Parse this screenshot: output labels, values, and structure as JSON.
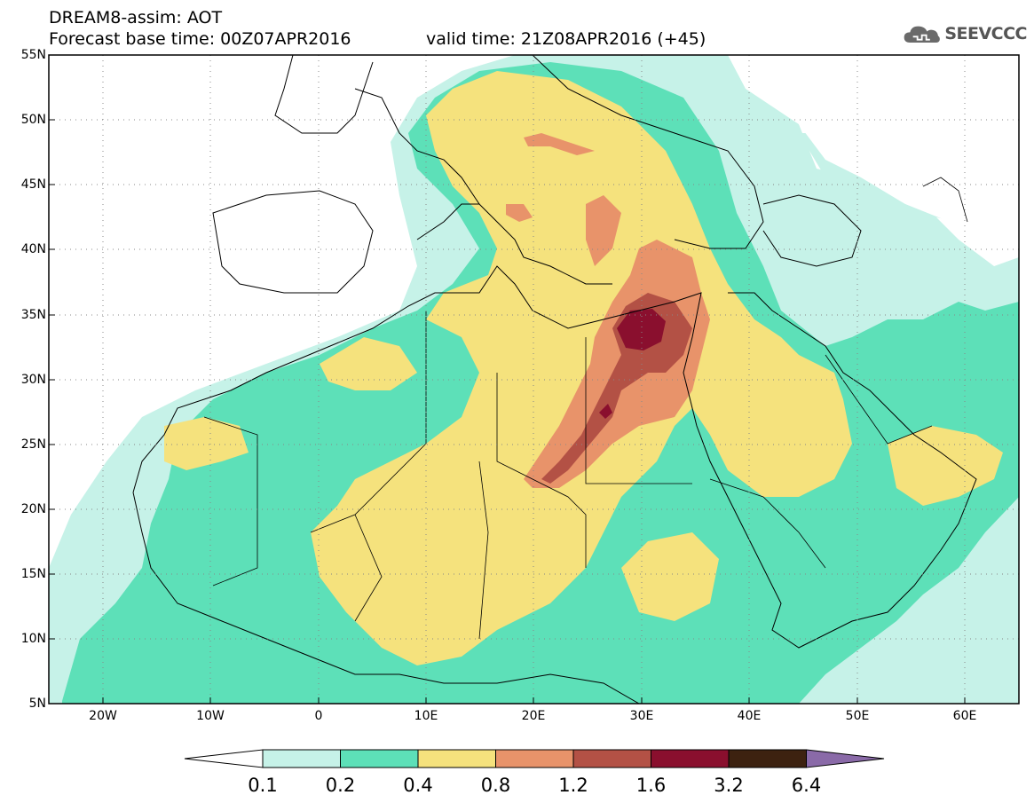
{
  "header": {
    "line1": "DREAM8-assim: AOT",
    "line2": "Forecast base time: 00Z07APR2016",
    "valid": "valid time: 21Z08APR2016 (+45)"
  },
  "logo": {
    "icon": "cloud-icon",
    "text": "SEEVCCC"
  },
  "axes": {
    "lat_labels": [
      "55N",
      "50N",
      "45N",
      "40N",
      "35N",
      "30N",
      "25N",
      "20N",
      "15N",
      "10N",
      "5N"
    ],
    "lon_labels": [
      "20W",
      "10W",
      "0",
      "10E",
      "20E",
      "30E",
      "40E",
      "50E",
      "60E"
    ],
    "lon_range": [
      -25,
      65
    ],
    "lat_range": [
      5,
      55
    ],
    "grid": "dotted"
  },
  "colorbar": {
    "levels": [
      "0.1",
      "0.2",
      "0.4",
      "0.8",
      "1.2",
      "1.6",
      "3.2",
      "6.4"
    ],
    "colors": [
      "#ffffff",
      "#c6f2e8",
      "#5de0b8",
      "#f5e27d",
      "#e8936a",
      "#b35145",
      "#8a0f2e",
      "#3d2210",
      "#8a6aa8"
    ]
  }
}
